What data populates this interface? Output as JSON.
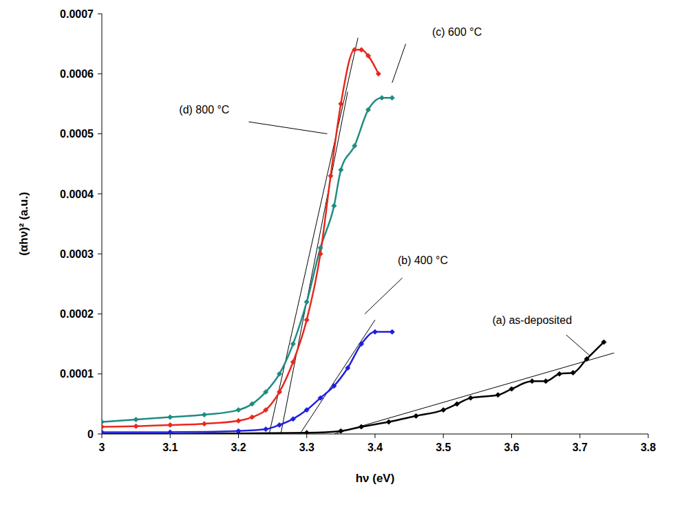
{
  "chart_data": {
    "type": "line",
    "x_label": "hν (eV)",
    "y_label": "(αhν)² (a.u.)",
    "xlim": [
      3,
      3.8
    ],
    "xticks": [
      3,
      3.1,
      3.2,
      3.3,
      3.4,
      3.5,
      3.6,
      3.7,
      3.8
    ],
    "ylim": [
      0,
      0.0007
    ],
    "yticks": [
      0,
      0.0001,
      0.0002,
      0.0003,
      0.0004,
      0.0005,
      0.0006,
      0.0007
    ],
    "grid": false,
    "series": [
      {
        "name": "(a) as-deposited",
        "color": "#000000",
        "marker": "diamond",
        "x": [
          3.0,
          3.1,
          3.2,
          3.3,
          3.35,
          3.38,
          3.42,
          3.46,
          3.5,
          3.52,
          3.54,
          3.58,
          3.6,
          3.63,
          3.65,
          3.67,
          3.69,
          3.71,
          3.735
        ],
        "values": [
          0,
          0,
          1e-06,
          2e-06,
          5e-06,
          1.2e-05,
          2e-05,
          3e-05,
          4e-05,
          5e-05,
          6e-05,
          6.5e-05,
          7.5e-05,
          8.8e-05,
          8.8e-05,
          0.0001,
          0.000102,
          0.000125,
          0.000153
        ]
      },
      {
        "name": "(b) 400 °C",
        "color": "#1f1fe0",
        "marker": "diamond",
        "x": [
          3.0,
          3.1,
          3.2,
          3.24,
          3.26,
          3.28,
          3.3,
          3.32,
          3.34,
          3.36,
          3.38,
          3.4,
          3.425
        ],
        "values": [
          3e-06,
          3e-06,
          5e-06,
          8e-06,
          1.5e-05,
          2.5e-05,
          4e-05,
          6e-05,
          8e-05,
          0.00011,
          0.00015,
          0.00017,
          0.00017
        ]
      },
      {
        "name": "(c) 600 °C",
        "color": "#1e8c82",
        "marker": "diamond",
        "x": [
          3.0,
          3.05,
          3.1,
          3.15,
          3.2,
          3.22,
          3.24,
          3.26,
          3.28,
          3.3,
          3.32,
          3.34,
          3.35,
          3.37,
          3.39,
          3.41,
          3.425
        ],
        "values": [
          2e-05,
          2.4e-05,
          2.8e-05,
          3.2e-05,
          4e-05,
          5e-05,
          7e-05,
          0.0001,
          0.00015,
          0.00022,
          0.00031,
          0.00038,
          0.00044,
          0.00048,
          0.00054,
          0.00056,
          0.00056
        ]
      },
      {
        "name": "(d) 800 °C",
        "color": "#e8281e",
        "marker": "diamond",
        "x": [
          3.0,
          3.05,
          3.1,
          3.15,
          3.2,
          3.22,
          3.24,
          3.26,
          3.28,
          3.3,
          3.32,
          3.335,
          3.35,
          3.37,
          3.38,
          3.39,
          3.405
        ],
        "values": [
          1.2e-05,
          1.3e-05,
          1.5e-05,
          1.7e-05,
          2.2e-05,
          2.8e-05,
          4e-05,
          7e-05,
          0.00012,
          0.00019,
          0.0003,
          0.00043,
          0.00055,
          0.00064,
          0.00064,
          0.00063,
          0.0006
        ]
      }
    ],
    "tangents": [
      {
        "color": "#000000",
        "x": [
          3.34,
          3.75
        ],
        "values": [
          0,
          0.000135
        ]
      },
      {
        "color": "#000000",
        "x": [
          3.29,
          3.4
        ],
        "values": [
          0,
          0.00019
        ]
      },
      {
        "color": "#000000",
        "x": [
          3.262,
          3.36
        ],
        "values": [
          0,
          0.00057
        ]
      },
      {
        "color": "#000000",
        "x": [
          3.245,
          3.375
        ],
        "values": [
          0,
          0.00066
        ]
      }
    ],
    "annotations": [
      {
        "text": "(a) as-deposited",
        "x": 3.63,
        "y": 0.00019,
        "line": [
          [
            3.68,
            0.000165
          ],
          [
            3.715,
            0.00013
          ]
        ]
      },
      {
        "text": "(b) 400 °C",
        "x": 3.47,
        "y": 0.00029,
        "line": [
          [
            3.44,
            0.00026
          ],
          [
            3.385,
            0.0002
          ]
        ]
      },
      {
        "text": "(c) 600 °C",
        "x": 3.52,
        "y": 0.00067,
        "line": [
          [
            3.445,
            0.00065
          ],
          [
            3.425,
            0.000585
          ]
        ]
      },
      {
        "text": "(d) 800 °C",
        "x": 3.15,
        "y": 0.00054,
        "line": [
          [
            3.215,
            0.00052
          ],
          [
            3.33,
            0.0005
          ]
        ]
      }
    ]
  }
}
